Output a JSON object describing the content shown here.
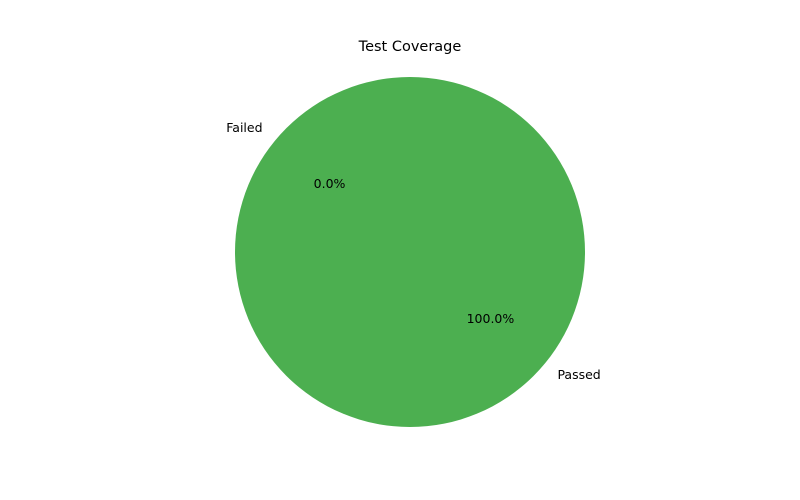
{
  "chart_data": {
    "type": "pie",
    "title": "Test Coverage",
    "slices": [
      {
        "label": "Passed",
        "value": 100,
        "pct_label": "100.0%",
        "color": "#4caf50"
      },
      {
        "label": "Failed",
        "value": 0,
        "pct_label": "0.0%",
        "color": "#f44336"
      }
    ],
    "start_angle_deg": 140,
    "direction": "counterclockwise",
    "legend": "none"
  }
}
